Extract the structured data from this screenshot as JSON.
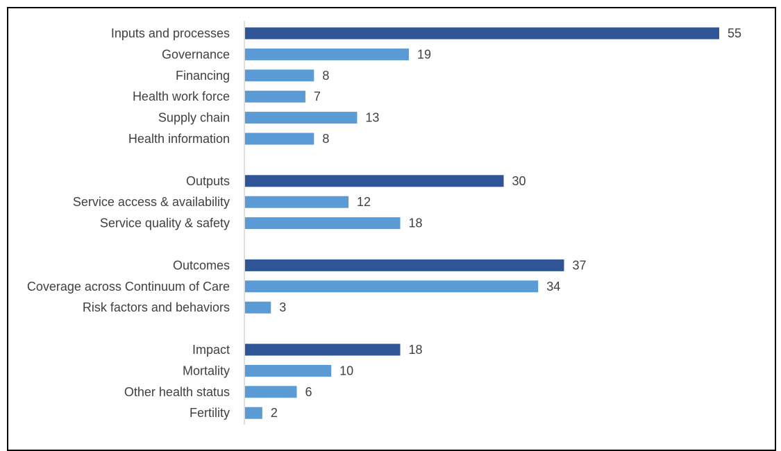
{
  "chart_data": {
    "type": "bar",
    "orientation": "horizontal",
    "grid": false,
    "legend": "none",
    "colors": {
      "group": "#2F5597",
      "sub": "#5B9BD5",
      "axis": "#BFBFBF",
      "text": "#404040"
    },
    "xlim": [
      0,
      55
    ],
    "categories": [
      {
        "label": "Inputs and processes",
        "value": 55,
        "level": "group"
      },
      {
        "label": "Governance",
        "value": 19,
        "level": "sub"
      },
      {
        "label": "Financing",
        "value": 8,
        "level": "sub"
      },
      {
        "label": "Health work force",
        "value": 7,
        "level": "sub"
      },
      {
        "label": "Supply chain",
        "value": 13,
        "level": "sub"
      },
      {
        "label": "Health information",
        "value": 8,
        "level": "sub"
      },
      {
        "label": "",
        "value": null,
        "level": "gap"
      },
      {
        "label": "Outputs",
        "value": 30,
        "level": "group"
      },
      {
        "label": "Service access & availability",
        "value": 12,
        "level": "sub"
      },
      {
        "label": "Service quality & safety",
        "value": 18,
        "level": "sub"
      },
      {
        "label": "",
        "value": null,
        "level": "gap"
      },
      {
        "label": "Outcomes",
        "value": 37,
        "level": "group"
      },
      {
        "label": "Coverage across Continuum of Care",
        "value": 34,
        "level": "sub"
      },
      {
        "label": "Risk factors and behaviors",
        "value": 3,
        "level": "sub"
      },
      {
        "label": "",
        "value": null,
        "level": "gap"
      },
      {
        "label": "Impact",
        "value": 18,
        "level": "group"
      },
      {
        "label": "Mortality",
        "value": 10,
        "level": "sub"
      },
      {
        "label": "Other health status",
        "value": 6,
        "level": "sub"
      },
      {
        "label": "Fertility",
        "value": 2,
        "level": "sub"
      }
    ]
  }
}
